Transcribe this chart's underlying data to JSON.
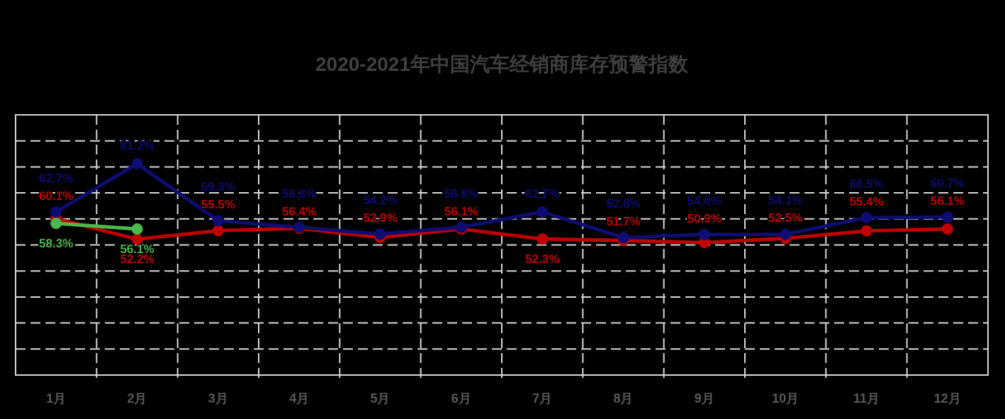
{
  "chart_data": {
    "type": "line",
    "title": "2020-2021年中国汽车经销商库存预警指数",
    "categories": [
      "1月",
      "2月",
      "3月",
      "4月",
      "5月",
      "6月",
      "7月",
      "8月",
      "9月",
      "10月",
      "11月",
      "12月"
    ],
    "series": [
      {
        "color": "#0d0d73",
        "values": [
          62.7,
          81.2,
          59.3,
          56.8,
          54.2,
          56.8,
          62.7,
          52.8,
          54.0,
          54.1,
          60.5,
          60.7
        ],
        "value_labels": [
          "62.7%",
          "81.2%",
          "59.3%",
          "56.8%",
          "54.2%",
          "56.8%",
          "62.7%",
          "52.8%",
          "54.0%",
          "54.1%",
          "60.5%",
          "60.7%"
        ]
      },
      {
        "color": "#c00000",
        "values": [
          60.1,
          52.2,
          55.5,
          56.4,
          52.9,
          56.1,
          52.3,
          51.7,
          50.9,
          52.5,
          55.4,
          56.1
        ],
        "value_labels": [
          "60.1%",
          "52.2%",
          "55.5%",
          "56.4%",
          "52.9%",
          "56.1%",
          "52.3%",
          "51.7%",
          "50.9%",
          "52.5%",
          "55.4%",
          "56.1%"
        ]
      },
      {
        "color": "#4cb94c",
        "values": [
          58.3,
          56.1,
          null,
          null,
          null,
          null,
          null,
          null,
          null,
          null,
          null,
          null
        ],
        "value_labels": [
          "58.3%",
          "56.1%",
          null,
          null,
          null,
          null,
          null,
          null,
          null,
          null,
          null,
          null
        ]
      }
    ],
    "tick_labels": "x",
    "grid": true,
    "marker": "circle",
    "line_style": "solid"
  }
}
